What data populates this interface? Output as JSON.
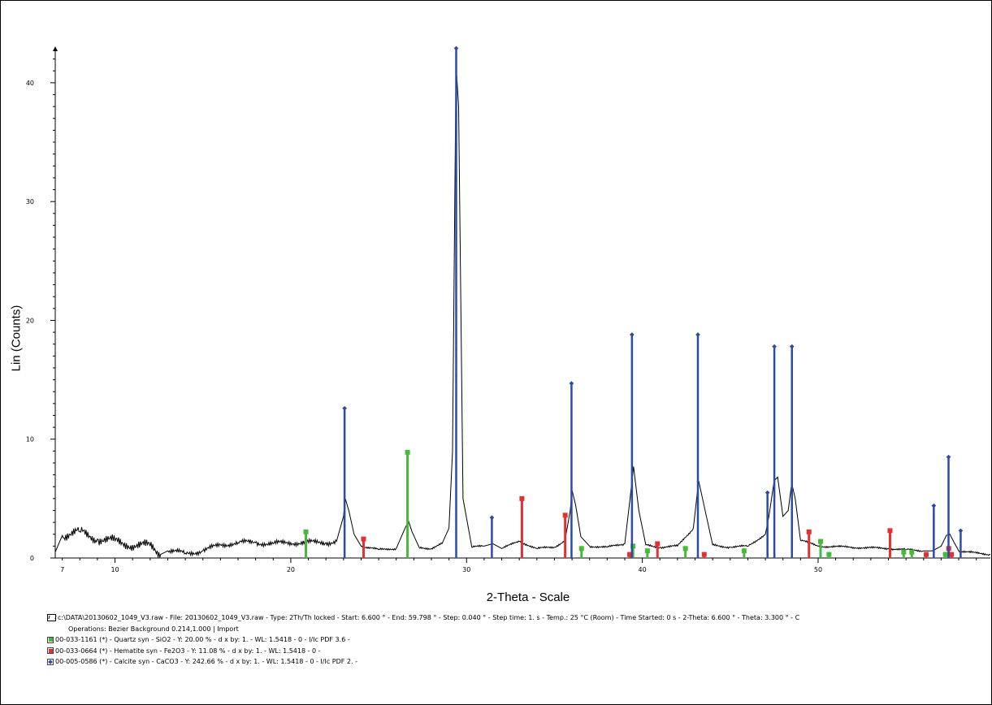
{
  "chart_data": {
    "type": "line",
    "xlabel": "2-Theta - Scale",
    "ylabel": "Lin (Counts)",
    "xlim": [
      6.6,
      59.8
    ],
    "ylim": [
      0,
      43
    ],
    "x_ticks": [
      7,
      10,
      20,
      30,
      40,
      50
    ],
    "y_ticks": [
      0,
      10,
      20,
      30,
      40
    ],
    "grid": false,
    "legend_position": "bottom",
    "pattern": {
      "x": [
        6.6,
        7.0,
        8.0,
        9.0,
        10.0,
        11.0,
        12.0,
        12.6,
        13.0,
        14.0,
        15.0,
        16.0,
        17.0,
        18.0,
        19.0,
        20.0,
        21.0,
        22.0,
        22.6,
        23.0,
        23.1,
        23.3,
        23.6,
        24.0,
        25.0,
        26.0,
        26.5,
        26.7,
        26.9,
        27.3,
        28.0,
        28.6,
        29.0,
        29.2,
        29.4,
        29.55,
        29.8,
        30.3,
        31.0,
        31.5,
        32.0,
        33.0,
        34.0,
        35.0,
        35.6,
        35.9,
        36.0,
        36.2,
        36.5,
        37.0,
        38.0,
        39.0,
        39.3,
        39.5,
        39.8,
        40.2,
        41.0,
        42.0,
        42.9,
        43.2,
        43.5,
        44.0,
        45.0,
        46.0,
        47.0,
        47.2,
        47.5,
        47.7,
        48.0,
        48.3,
        48.5,
        48.7,
        49.0,
        50.0,
        52.0,
        54.0,
        55.0,
        56.0,
        56.5,
        57.0,
        57.3,
        57.5,
        57.7,
        58.0,
        59.0,
        59.8
      ],
      "y": [
        0.5,
        1.9,
        2.2,
        1.6,
        1.4,
        1.1,
        1.0,
        0.3,
        0.6,
        0.4,
        0.6,
        1.1,
        1.3,
        1.3,
        1.2,
        1.3,
        1.3,
        1.3,
        1.4,
        3.5,
        5.0,
        4.0,
        2.0,
        1.0,
        0.7,
        0.8,
        2.5,
        3.1,
        2.2,
        0.9,
        0.8,
        1.2,
        2.5,
        9.0,
        41.5,
        38.0,
        5.0,
        0.9,
        1.0,
        1.2,
        0.8,
        1.4,
        0.8,
        0.9,
        1.5,
        4.0,
        5.7,
        4.5,
        1.8,
        1.0,
        0.9,
        1.2,
        5.0,
        7.7,
        4.0,
        1.1,
        0.9,
        1.0,
        2.5,
        6.5,
        4.5,
        1.1,
        0.9,
        1.0,
        2.0,
        3.5,
        6.5,
        6.8,
        3.5,
        4.0,
        6.3,
        5.0,
        1.5,
        1.0,
        0.9,
        0.8,
        0.7,
        0.6,
        0.6,
        1.0,
        1.9,
        2.0,
        1.4,
        0.6,
        0.4,
        0.3
      ]
    },
    "series": [
      {
        "name": "00-033-1161 (*) - Quartz syn - SiO2",
        "color": "#46b83a",
        "marker": "square",
        "x": [
          20.86,
          26.64,
          36.54,
          39.47,
          40.29,
          42.45,
          45.79,
          50.14,
          50.62,
          54.87,
          55.33,
          57.24
        ],
        "y": [
          2.2,
          8.9,
          0.8,
          1.0,
          0.6,
          0.8,
          0.6,
          1.4,
          0.3,
          0.5,
          0.5,
          0.3
        ]
      },
      {
        "name": "00-033-0664 (*) - Hematite syn - Fe2O3",
        "color": "#e03232",
        "marker": "square",
        "x": [
          24.14,
          33.15,
          35.61,
          39.28,
          40.86,
          43.52,
          49.48,
          54.09,
          56.15,
          57.43,
          57.59
        ],
        "y": [
          1.6,
          5.0,
          3.6,
          0.3,
          1.2,
          0.3,
          2.2,
          2.3,
          0.3,
          0.8,
          0.3
        ]
      },
      {
        "name": "00-005-0586 (*) - Calcite syn - CaCO3",
        "color": "#2c4aa8",
        "marker": "diamond",
        "x": [
          23.06,
          29.41,
          31.44,
          35.97,
          39.41,
          43.16,
          47.12,
          47.51,
          48.51,
          56.58,
          57.42,
          58.11
        ],
        "y": [
          12.6,
          42.9,
          3.4,
          14.7,
          18.8,
          18.8,
          5.5,
          17.8,
          17.8,
          4.4,
          8.5,
          2.3
        ]
      }
    ]
  },
  "legend": {
    "raw_line": "c:\\DATA\\20130602_1049_V3.raw - File: 20130602_1049_V3.raw - Type: 2Th/Th locked - Start: 6.600 ° - End: 59.798 ° - Step: 0.040 ° - Step time: 1. s - Temp.: 25 °C (Room) - Time Started: 0 s - 2-Theta: 6.600 ° - Theta: 3.300 ° - C",
    "operations_line": "Operations: Bezier Background 0.214,1.000 | Import",
    "quartz_line": "00-033-1161 (*) - Quartz syn - SiO2 - Y: 20.00 % - d x by: 1. - WL: 1.5418 - 0 - I/Ic PDF 3.6 -",
    "hematite_line": "00-033-0664 (*) - Hematite syn - Fe2O3 - Y: 11.08 % - d x by: 1. - WL: 1.5418 - 0 -",
    "calcite_line": "00-005-0586 (*) - Calcite syn - CaCO3 - Y: 242.66 % - d x by: 1. - WL: 1.5418 - 0 - I/Ic PDF 2. -"
  }
}
